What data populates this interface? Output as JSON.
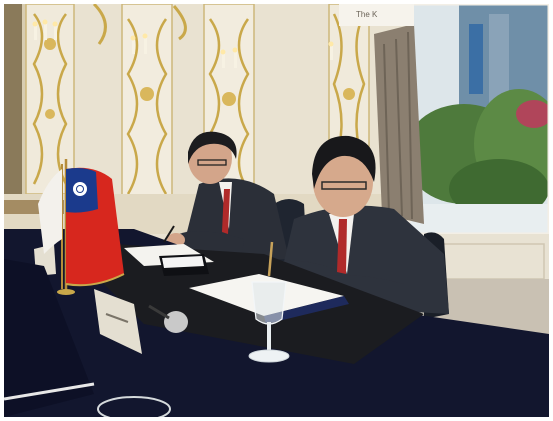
{
  "photo": {
    "banner_text": "The K",
    "description_colors": {
      "wall": "#ece6d6",
      "gold_trim": "#c9a84a",
      "table_cloth": "#12162e",
      "suit": "#2b2f38",
      "tie": "#b02a2a",
      "flag_red": "#d7271e",
      "flag_blue": "#1b3a8c",
      "window_green": "#4e7a3c"
    }
  }
}
